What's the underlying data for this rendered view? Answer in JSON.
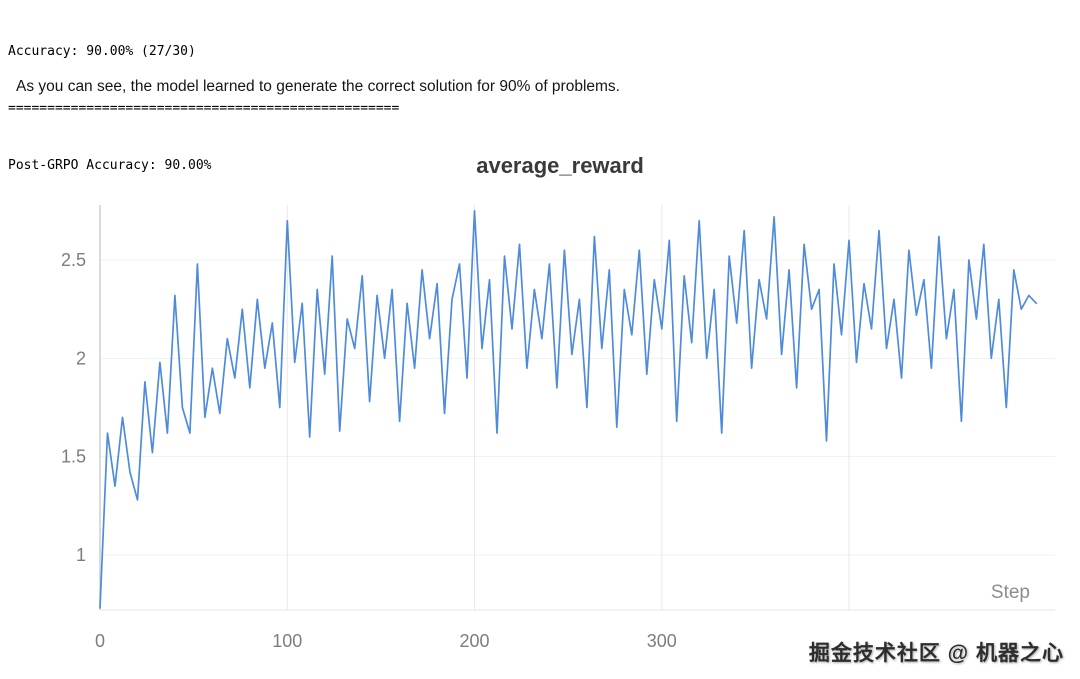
{
  "console": {
    "line1": "Accuracy: 90.00% (27/30)",
    "separator": "==================================================",
    "line2": "Post-GRPO Accuracy: 90.00%"
  },
  "paragraph": "As you can see, the model learned to generate the correct solution for 90% of problems.",
  "chart_data": {
    "type": "line",
    "title": "average_reward",
    "xlabel": "Step",
    "ylabel": "",
    "xlim": [
      0,
      510
    ],
    "ylim": [
      0.72,
      2.78
    ],
    "x_ticks": [
      0,
      100,
      200,
      300
    ],
    "x_gridlines": [
      100,
      200,
      300,
      400
    ],
    "y_ticks": [
      1,
      1.5,
      2,
      2.5
    ],
    "grid": true,
    "legend": "none",
    "line_color": "#4e8cdb",
    "series": [
      {
        "name": "average_reward",
        "points": [
          [
            0,
            0.73
          ],
          [
            4,
            1.62
          ],
          [
            8,
            1.35
          ],
          [
            12,
            1.7
          ],
          [
            16,
            1.42
          ],
          [
            20,
            1.28
          ],
          [
            24,
            1.88
          ],
          [
            28,
            1.52
          ],
          [
            32,
            1.98
          ],
          [
            36,
            1.62
          ],
          [
            40,
            2.32
          ],
          [
            44,
            1.75
          ],
          [
            48,
            1.62
          ],
          [
            52,
            2.48
          ],
          [
            56,
            1.7
          ],
          [
            60,
            1.95
          ],
          [
            64,
            1.72
          ],
          [
            68,
            2.1
          ],
          [
            72,
            1.9
          ],
          [
            76,
            2.25
          ],
          [
            80,
            1.85
          ],
          [
            84,
            2.3
          ],
          [
            88,
            1.95
          ],
          [
            92,
            2.18
          ],
          [
            96,
            1.75
          ],
          [
            100,
            2.7
          ],
          [
            104,
            1.98
          ],
          [
            108,
            2.28
          ],
          [
            112,
            1.6
          ],
          [
            116,
            2.35
          ],
          [
            120,
            1.92
          ],
          [
            124,
            2.52
          ],
          [
            128,
            1.63
          ],
          [
            132,
            2.2
          ],
          [
            136,
            2.05
          ],
          [
            140,
            2.42
          ],
          [
            144,
            1.78
          ],
          [
            148,
            2.32
          ],
          [
            152,
            2.0
          ],
          [
            156,
            2.35
          ],
          [
            160,
            1.68
          ],
          [
            164,
            2.28
          ],
          [
            168,
            1.95
          ],
          [
            172,
            2.45
          ],
          [
            176,
            2.1
          ],
          [
            180,
            2.38
          ],
          [
            184,
            1.72
          ],
          [
            188,
            2.3
          ],
          [
            192,
            2.48
          ],
          [
            196,
            1.9
          ],
          [
            200,
            2.75
          ],
          [
            204,
            2.05
          ],
          [
            208,
            2.4
          ],
          [
            212,
            1.62
          ],
          [
            216,
            2.52
          ],
          [
            220,
            2.15
          ],
          [
            224,
            2.58
          ],
          [
            228,
            1.95
          ],
          [
            232,
            2.35
          ],
          [
            236,
            2.1
          ],
          [
            240,
            2.48
          ],
          [
            244,
            1.85
          ],
          [
            248,
            2.55
          ],
          [
            252,
            2.02
          ],
          [
            256,
            2.3
          ],
          [
            260,
            1.75
          ],
          [
            264,
            2.62
          ],
          [
            268,
            2.05
          ],
          [
            272,
            2.45
          ],
          [
            276,
            1.65
          ],
          [
            280,
            2.35
          ],
          [
            284,
            2.12
          ],
          [
            288,
            2.55
          ],
          [
            292,
            1.92
          ],
          [
            296,
            2.4
          ],
          [
            300,
            2.15
          ],
          [
            304,
            2.6
          ],
          [
            308,
            1.68
          ],
          [
            312,
            2.42
          ],
          [
            316,
            2.08
          ],
          [
            320,
            2.7
          ],
          [
            324,
            2.0
          ],
          [
            328,
            2.35
          ],
          [
            332,
            1.62
          ],
          [
            336,
            2.52
          ],
          [
            340,
            2.18
          ],
          [
            344,
            2.65
          ],
          [
            348,
            1.95
          ],
          [
            352,
            2.4
          ],
          [
            356,
            2.2
          ],
          [
            360,
            2.72
          ],
          [
            364,
            2.02
          ],
          [
            368,
            2.45
          ],
          [
            372,
            1.85
          ],
          [
            376,
            2.58
          ],
          [
            380,
            2.25
          ],
          [
            384,
            2.35
          ],
          [
            388,
            1.58
          ],
          [
            392,
            2.48
          ],
          [
            396,
            2.12
          ],
          [
            400,
            2.6
          ],
          [
            404,
            1.98
          ],
          [
            408,
            2.38
          ],
          [
            412,
            2.15
          ],
          [
            416,
            2.65
          ],
          [
            420,
            2.05
          ],
          [
            424,
            2.3
          ],
          [
            428,
            1.9
          ],
          [
            432,
            2.55
          ],
          [
            436,
            2.22
          ],
          [
            440,
            2.4
          ],
          [
            444,
            1.95
          ],
          [
            448,
            2.62
          ],
          [
            452,
            2.1
          ],
          [
            456,
            2.35
          ],
          [
            460,
            1.68
          ],
          [
            464,
            2.5
          ],
          [
            468,
            2.2
          ],
          [
            472,
            2.58
          ],
          [
            476,
            2.0
          ],
          [
            480,
            2.3
          ],
          [
            484,
            1.75
          ],
          [
            488,
            2.45
          ],
          [
            492,
            2.25
          ],
          [
            496,
            2.32
          ],
          [
            500,
            2.28
          ]
        ]
      }
    ]
  },
  "watermark": "掘金技术社区 @ 机器之心"
}
